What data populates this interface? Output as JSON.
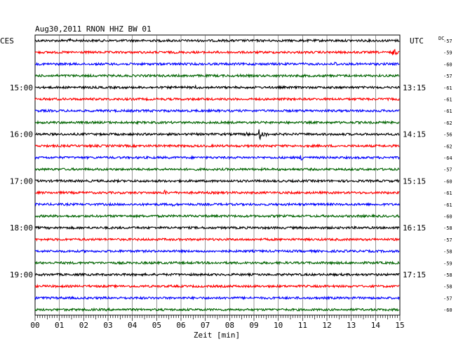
{
  "chart_data": {
    "type": "line",
    "title": "Aug30,2011   RNON HHZ BW 01",
    "left_axis_label": "CES",
    "right_axis_label": "UTC",
    "offset_label": "DC",
    "xlabel": "Zeit [min]",
    "x_ticks": [
      "00",
      "01",
      "02",
      "03",
      "04",
      "05",
      "06",
      "07",
      "08",
      "09",
      "10",
      "11",
      "12",
      "13",
      "14",
      "15"
    ],
    "xlim": [
      0,
      15
    ],
    "grid": true,
    "left_hour_labels": [
      {
        "row": 4,
        "text": "15:00"
      },
      {
        "row": 8,
        "text": "16:00"
      },
      {
        "row": 12,
        "text": "17:00"
      },
      {
        "row": 16,
        "text": "18:00"
      },
      {
        "row": 20,
        "text": "19:00"
      }
    ],
    "right_hour_labels": [
      {
        "row": 4,
        "text": "13:15"
      },
      {
        "row": 8,
        "text": "14:15"
      },
      {
        "row": 12,
        "text": "15:15"
      },
      {
        "row": 16,
        "text": "16:15"
      },
      {
        "row": 20,
        "text": "17:15"
      }
    ],
    "colors": [
      "#000000",
      "#ff0000",
      "#0000ff",
      "#006400"
    ],
    "dc_offsets": [
      "-57",
      "-59",
      "-60",
      "-57",
      "-61",
      "-61",
      "-61",
      "-62",
      "-56",
      "-62",
      "-64",
      "-57",
      "-60",
      "-61",
      "-61",
      "-60",
      "-58",
      "-57",
      "-58",
      "-59",
      "-58",
      "-58",
      "-57",
      "-60"
    ],
    "traces": [
      {
        "row": 0,
        "events": [
          {
            "t": 1.4,
            "amp": 3
          }
        ]
      },
      {
        "row": 1,
        "events": [
          {
            "t": 14.7,
            "amp": 6
          }
        ]
      },
      {
        "row": 2,
        "events": [
          {
            "t": 12.3,
            "amp": 4
          }
        ]
      },
      {
        "row": 3,
        "events": [
          {
            "t": 8.4,
            "amp": 2.5
          }
        ]
      },
      {
        "row": 4,
        "events": [
          {
            "t": 6.6,
            "amp": 3
          }
        ]
      },
      {
        "row": 5,
        "events": [
          {
            "t": 6.7,
            "amp": 2.5
          }
        ]
      },
      {
        "row": 6,
        "events": [
          {
            "t": 11.5,
            "amp": 2
          }
        ]
      },
      {
        "row": 7,
        "events": [
          {
            "t": 11.8,
            "amp": 2
          }
        ]
      },
      {
        "row": 8,
        "events": [
          {
            "t": 9.2,
            "amp": 9
          },
          {
            "t": 8.6,
            "amp": 4
          }
        ]
      },
      {
        "row": 9,
        "events": [
          {
            "t": 7.6,
            "amp": 2
          }
        ]
      },
      {
        "row": 10,
        "events": [
          {
            "t": 10.9,
            "amp": 6
          }
        ]
      },
      {
        "row": 11,
        "events": [
          {
            "t": 9.0,
            "amp": 2
          }
        ]
      },
      {
        "row": 12,
        "events": [
          {
            "t": 7.2,
            "amp": 2
          }
        ]
      },
      {
        "row": 13,
        "events": [
          {
            "t": 5.3,
            "amp": 4
          }
        ]
      },
      {
        "row": 14,
        "events": [
          {
            "t": 5.6,
            "amp": 3.5
          }
        ]
      },
      {
        "row": 15,
        "events": [
          {
            "t": 2.8,
            "amp": 2
          }
        ]
      },
      {
        "row": 16,
        "events": [
          {
            "t": 4.1,
            "amp": 2
          }
        ]
      },
      {
        "row": 17,
        "events": [
          {
            "t": 10.3,
            "amp": 2
          }
        ]
      },
      {
        "row": 18,
        "events": [
          {
            "t": 12.8,
            "amp": 2
          }
        ]
      },
      {
        "row": 19,
        "events": [
          {
            "t": 7.5,
            "amp": 2
          }
        ]
      },
      {
        "row": 20,
        "events": [
          {
            "t": 3.9,
            "amp": 2.5
          }
        ]
      },
      {
        "row": 21,
        "events": [
          {
            "t": 1.9,
            "amp": 2
          }
        ]
      },
      {
        "row": 22,
        "events": [
          {
            "t": 14.0,
            "amp": 2
          }
        ]
      },
      {
        "row": 23,
        "events": [
          {
            "t": 6.1,
            "amp": 2
          }
        ]
      }
    ]
  }
}
